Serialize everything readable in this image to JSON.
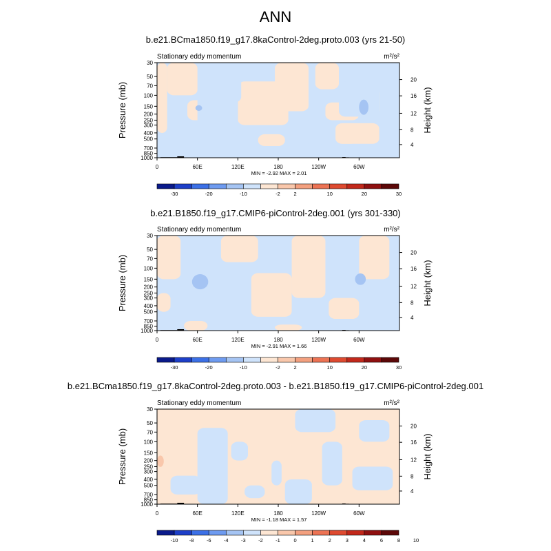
{
  "page_title": "ANN",
  "colorbar_colors": [
    "#0a1a8a",
    "#1d3fc8",
    "#3c70e6",
    "#6e9bf0",
    "#a5c4f3",
    "#cfe3fb",
    "#fde6d3",
    "#f9c7ab",
    "#f3a07f",
    "#ec7354",
    "#de4a30",
    "#c2281b",
    "#8f1010",
    "#5c0808"
  ],
  "chart_data": [
    {
      "type": "heatmap",
      "title": "b.e21.BCma1850.f19_g17.8kaControl-2deg.proto.003 (yrs 21-50)",
      "subtitle": "Stationary eddy momentum",
      "units": "m²/s²",
      "ylabel": "Pressure (mb)",
      "y2label": "Height (km)",
      "yscale": "log",
      "ylim": [
        1000,
        30
      ],
      "xlim": [
        0,
        360
      ],
      "x_ticks": [
        "0",
        "60E",
        "120E",
        "180",
        "120W",
        "60W"
      ],
      "x_tick_values": [
        0,
        60,
        120,
        180,
        240,
        300
      ],
      "y_ticks": [
        "30",
        "50",
        "70",
        "100",
        "150",
        "200",
        "250",
        "300",
        "400",
        "500",
        "700",
        "850",
        "1000"
      ],
      "y_tick_values": [
        30,
        50,
        70,
        100,
        150,
        200,
        250,
        300,
        400,
        500,
        700,
        850,
        1000
      ],
      "y2_ticks": [
        "20",
        "16",
        "12",
        "8",
        "4"
      ],
      "y2_tick_pressures": [
        56,
        102,
        194,
        356,
        616
      ],
      "stats": "MIN = -2.92  MAX = 2.01",
      "colorbar_labels": [
        "-30",
        "-20",
        "-10",
        "-2",
        "2",
        "10",
        "20",
        "30"
      ],
      "colorbar_label_boundaries": [
        1,
        3,
        5,
        7,
        8,
        10,
        12,
        14
      ],
      "regions": [
        {
          "value": 1,
          "lon": [
            0,
            15
          ],
          "p": [
            400,
            30
          ]
        },
        {
          "value": 1,
          "lon": [
            15,
            60
          ],
          "p": [
            100,
            30
          ]
        },
        {
          "value": 1,
          "lon": [
            45,
            75
          ],
          "p": [
            250,
            120
          ]
        },
        {
          "value": 1,
          "lon": [
            120,
            195
          ],
          "p": [
            300,
            60
          ]
        },
        {
          "value": 1,
          "lon": [
            175,
            225
          ],
          "p": [
            180,
            30
          ]
        },
        {
          "value": 1,
          "lon": [
            235,
            270
          ],
          "p": [
            80,
            30
          ]
        },
        {
          "value": 1,
          "lon": [
            250,
            300
          ],
          "p": [
            250,
            130
          ]
        },
        {
          "value": 1,
          "lon": [
            265,
            330
          ],
          "p": [
            600,
            280
          ]
        },
        {
          "value": 1,
          "lon": [
            300,
            360
          ],
          "p": [
            180,
            90
          ]
        },
        {
          "value": 1,
          "lon": [
            150,
            190
          ],
          "p": [
            650,
            420
          ]
        },
        {
          "value": 1,
          "lon": [
            60,
            95
          ],
          "p": [
            1000,
            850
          ]
        }
      ],
      "negative_regions": [
        {
          "value": -1,
          "lon": [
            0,
            120
          ],
          "p": [
            1000,
            400
          ]
        },
        {
          "value": -1,
          "lon": [
            60,
            120
          ],
          "p": [
            400,
            100
          ]
        },
        {
          "value": -1,
          "lon": [
            100,
            175
          ],
          "p": [
            1000,
            650
          ]
        },
        {
          "value": -1,
          "lon": [
            195,
            250
          ],
          "p": [
            1000,
            600
          ]
        },
        {
          "value": -1,
          "lon": [
            215,
            260
          ],
          "p": [
            600,
            250
          ]
        },
        {
          "value": -1,
          "lon": [
            280,
            360
          ],
          "p": [
            1000,
            600
          ]
        },
        {
          "value": -1,
          "lon": [
            330,
            360
          ],
          "p": [
            600,
            30
          ]
        },
        {
          "value": -1,
          "lon": [
            270,
            330
          ],
          "p": [
            220,
            60
          ]
        },
        {
          "value": -1,
          "lon": [
            75,
            125
          ],
          "p": [
            130,
            30
          ]
        }
      ],
      "spots": [
        {
          "value": -2,
          "lon": 307,
          "p": 155,
          "rlon": 7,
          "rp": 0.08
        },
        {
          "value": -2,
          "lon": 62,
          "p": 160,
          "rlon": 5,
          "rp": 0.03
        }
      ]
    },
    {
      "type": "heatmap",
      "title": "b.e21.B1850.f19_g17.CMIP6-piControl-2deg.001 (yrs 301-330)",
      "subtitle": "Stationary eddy momentum",
      "units": "m²/s²",
      "ylabel": "Pressure (mb)",
      "y2label": "Height (km)",
      "yscale": "log",
      "ylim": [
        1000,
        30
      ],
      "xlim": [
        0,
        360
      ],
      "x_ticks": [
        "0",
        "60E",
        "120E",
        "180",
        "120W",
        "60W"
      ],
      "x_tick_values": [
        0,
        60,
        120,
        180,
        240,
        300
      ],
      "y_ticks": [
        "30",
        "50",
        "70",
        "100",
        "150",
        "200",
        "250",
        "300",
        "400",
        "500",
        "700",
        "850",
        "1000"
      ],
      "y_tick_values": [
        30,
        50,
        70,
        100,
        150,
        200,
        250,
        300,
        400,
        500,
        700,
        850,
        1000
      ],
      "y2_ticks": [
        "20",
        "16",
        "12",
        "8",
        "4"
      ],
      "y2_tick_pressures": [
        56,
        102,
        194,
        356,
        616
      ],
      "stats": "MIN = -2.91  MAX = 1.66",
      "colorbar_labels": [
        "-30",
        "-20",
        "-10",
        "-2",
        "2",
        "10",
        "20",
        "30"
      ],
      "colorbar_label_boundaries": [
        1,
        3,
        5,
        7,
        8,
        10,
        12,
        14
      ],
      "regions": [
        {
          "value": 1,
          "lon": [
            0,
            20
          ],
          "p": [
            500,
            250
          ]
        },
        {
          "value": 1,
          "lon": [
            0,
            35
          ],
          "p": [
            150,
            30
          ]
        },
        {
          "value": 1,
          "lon": [
            95,
            150
          ],
          "p": [
            80,
            30
          ]
        },
        {
          "value": 1,
          "lon": [
            140,
            200
          ],
          "p": [
            600,
            120
          ]
        },
        {
          "value": 1,
          "lon": [
            200,
            250
          ],
          "p": [
            300,
            30
          ]
        },
        {
          "value": 1,
          "lon": [
            255,
            300
          ],
          "p": [
            650,
            300
          ]
        },
        {
          "value": 1,
          "lon": [
            300,
            345
          ],
          "p": [
            150,
            30
          ]
        },
        {
          "value": 1,
          "lon": [
            40,
            75
          ],
          "p": [
            1000,
            700
          ]
        },
        {
          "value": 1,
          "lon": [
            175,
            215
          ],
          "p": [
            1000,
            800
          ]
        }
      ],
      "negative_regions": [],
      "spots": [
        {
          "value": -2,
          "lon": 64,
          "p": 165,
          "rlon": 12,
          "rp": 0.08
        },
        {
          "value": -2,
          "lon": 302,
          "p": 150,
          "rlon": 8,
          "rp": 0.06
        }
      ]
    },
    {
      "type": "heatmap",
      "title": "b.e21.BCma1850.f19_g17.8kaControl-2deg.proto.003 - b.e21.B1850.f19_g17.CMIP6-piControl-2deg.001",
      "subtitle": "Stationary eddy momentum",
      "units": "m²/s²",
      "ylabel": "Pressure (mb)",
      "y2label": "Height (km)",
      "yscale": "log",
      "ylim": [
        1000,
        30
      ],
      "xlim": [
        0,
        360
      ],
      "x_ticks": [
        "0",
        "60E",
        "120E",
        "180",
        "120W",
        "60W"
      ],
      "x_tick_values": [
        0,
        60,
        120,
        180,
        240,
        300
      ],
      "y_ticks": [
        "30",
        "50",
        "70",
        "100",
        "150",
        "200",
        "250",
        "300",
        "400",
        "500",
        "700",
        "850",
        "1000"
      ],
      "y_tick_values": [
        30,
        50,
        70,
        100,
        150,
        200,
        250,
        300,
        400,
        500,
        700,
        850,
        1000
      ],
      "y2_ticks": [
        "20",
        "16",
        "12",
        "8",
        "4"
      ],
      "y2_tick_pressures": [
        56,
        102,
        194,
        356,
        616
      ],
      "stats": "MIN = -1.18  MAX = 1.57",
      "colorbar_labels": [
        "-10",
        "-8",
        "-6",
        "-4",
        "-3",
        "-2",
        "-1",
        "0",
        "1",
        "2",
        "3",
        "4",
        "6",
        "8",
        "10"
      ],
      "colorbar_label_boundaries": [
        1,
        2,
        3,
        4,
        5,
        6,
        7,
        8,
        9,
        10,
        11,
        12,
        13,
        14,
        15
      ],
      "regions": [
        {
          "value": -1,
          "lon": [
            60,
            105
          ],
          "p": [
            1000,
            60
          ]
        },
        {
          "value": -1,
          "lon": [
            20,
            65
          ],
          "p": [
            700,
            350
          ]
        },
        {
          "value": -1,
          "lon": [
            130,
            160
          ],
          "p": [
            800,
            500
          ]
        },
        {
          "value": -1,
          "lon": [
            170,
            185
          ],
          "p": [
            500,
            200
          ]
        },
        {
          "value": -1,
          "lon": [
            205,
            265
          ],
          "p": [
            70,
            30
          ]
        },
        {
          "value": -1,
          "lon": [
            190,
            230
          ],
          "p": [
            1000,
            400
          ]
        },
        {
          "value": -1,
          "lon": [
            245,
            275
          ],
          "p": [
            500,
            100
          ]
        },
        {
          "value": -1,
          "lon": [
            290,
            350
          ],
          "p": [
            600,
            250
          ]
        },
        {
          "value": -1,
          "lon": [
            300,
            345
          ],
          "p": [
            100,
            45
          ]
        },
        {
          "value": -1,
          "lon": [
            110,
            135
          ],
          "p": [
            200,
            100
          ]
        }
      ],
      "negative_regions": [],
      "spots": [
        {
          "value": 2,
          "lon": 5,
          "p": 205,
          "rlon": 5,
          "rp": 0.06
        }
      ]
    }
  ]
}
